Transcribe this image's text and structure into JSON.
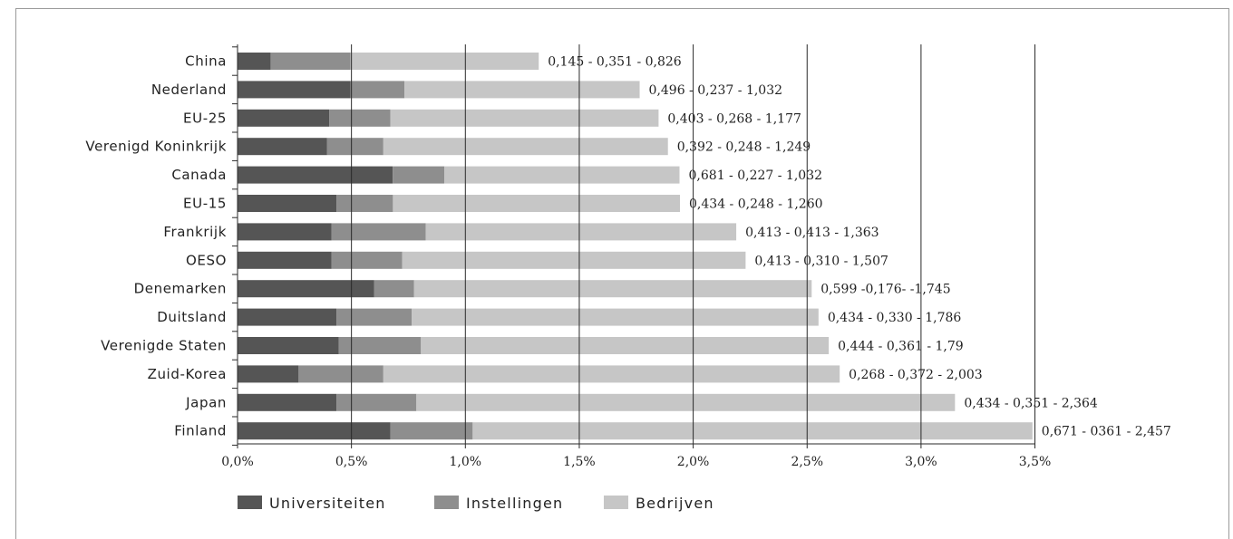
{
  "chart_data": {
    "type": "bar",
    "orientation": "horizontal",
    "stacked": true,
    "title": "",
    "xlabel": "",
    "ylabel": "",
    "xlim": [
      0,
      3.5
    ],
    "grid": true,
    "legend_position": "bottom-left",
    "categories": [
      "China",
      "Nederland",
      "EU-25",
      "Verenigd Koninkrijk",
      "Canada",
      "EU-15",
      "Frankrijk",
      "OESO",
      "Denemarken",
      "Duitsland",
      "Verenigde Staten",
      "Zuid-Korea",
      "Japan",
      "Finland"
    ],
    "x_tick_labels": [
      "0,0%",
      "0,5%",
      "1,0%",
      "1,5%",
      "2,0%",
      "2,5%",
      "3,0%",
      "3,5%"
    ],
    "x_tick_values": [
      0,
      0.5,
      1.0,
      1.5,
      2.0,
      2.5,
      3.0,
      3.5
    ],
    "series": [
      {
        "name": "Universiteiten",
        "color": "#555555",
        "values": [
          0.145,
          0.496,
          0.403,
          0.392,
          0.681,
          0.434,
          0.413,
          0.413,
          0.599,
          0.434,
          0.444,
          0.268,
          0.434,
          0.671
        ]
      },
      {
        "name": "Instellingen",
        "color": "#8e8e8e",
        "values": [
          0.351,
          0.237,
          0.268,
          0.248,
          0.227,
          0.248,
          0.413,
          0.31,
          0.176,
          0.33,
          0.361,
          0.372,
          0.351,
          0.361
        ]
      },
      {
        "name": "Bedrijven",
        "color": "#c6c6c6",
        "values": [
          0.826,
          1.032,
          1.177,
          1.249,
          1.032,
          1.26,
          1.363,
          1.507,
          1.745,
          1.786,
          1.79,
          2.003,
          2.364,
          2.457
        ]
      }
    ],
    "data_labels": [
      "0,145 - 0,351 - 0,826",
      "0,496 - 0,237 - 1,032",
      "0,403 - 0,268 - 1,177",
      "0,392 - 0,248 - 1,249",
      "0,681 - 0,227 - 1,032",
      "0,434 - 0,248 - 1,260",
      "0,413 - 0,413 - 1,363",
      "0,413 - 0,310 - 1,507",
      "0,599 -0,176- -1,745",
      "0,434 - 0,330 - 1,786",
      "0,444 - 0,361 - 1,79",
      "0,268 - 0,372 - 2,003",
      "0,434 - 0,351 - 2,364",
      "0,671 - 0361 - 2,457"
    ]
  }
}
